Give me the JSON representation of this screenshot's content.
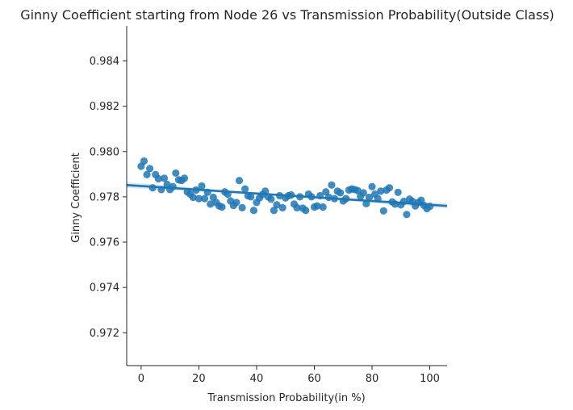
{
  "chart_data": {
    "type": "scatter",
    "title": "Ginny Coefficient starting from Node 26 vs Transmission Probability(Outside Class)",
    "xlabel": "Transmission Probability(in %)",
    "ylabel": "Ginny Coefficient",
    "xlim": [
      -5,
      106
    ],
    "ylim": [
      0.97055,
      0.98555
    ],
    "xticks": [
      0,
      20,
      40,
      60,
      80,
      100
    ],
    "yticks": [
      0.972,
      0.974,
      0.976,
      0.978,
      0.98,
      0.982,
      0.984
    ],
    "ytick_labels": [
      "0.972",
      "0.974",
      "0.976",
      "0.978",
      "0.980",
      "0.982",
      "0.984"
    ],
    "grid": false,
    "colors": {
      "points": "#1f77b4",
      "regression": "#1f77b4",
      "ci_band": "#1f77b4"
    },
    "regression": {
      "x": [
        -5,
        106
      ],
      "y": [
        0.97852,
        0.9776
      ]
    },
    "x": [
      0,
      1,
      2,
      3,
      4,
      5,
      6,
      7,
      8,
      9,
      10,
      11,
      12,
      13,
      14,
      15,
      16,
      17,
      18,
      19,
      20,
      21,
      22,
      23,
      24,
      25,
      26,
      27,
      28,
      29,
      30,
      31,
      32,
      33,
      34,
      35,
      36,
      37,
      38,
      39,
      40,
      41,
      42,
      43,
      44,
      45,
      46,
      47,
      48,
      49,
      50,
      51,
      52,
      53,
      54,
      55,
      56,
      57,
      58,
      59,
      60,
      61,
      62,
      63,
      64,
      65,
      66,
      67,
      68,
      69,
      70,
      71,
      72,
      73,
      74,
      75,
      76,
      77,
      78,
      79,
      80,
      81,
      82,
      83,
      84,
      85,
      86,
      87,
      88,
      89,
      90,
      91,
      92,
      93,
      94,
      95,
      96,
      97,
      98,
      99,
      100
    ],
    "y": [
      0.97935,
      0.97958,
      0.97898,
      0.97925,
      0.9784,
      0.97898,
      0.9788,
      0.97832,
      0.97882,
      0.97855,
      0.97832,
      0.97845,
      0.97905,
      0.97875,
      0.97872,
      0.97882,
      0.97822,
      0.97812,
      0.97798,
      0.9783,
      0.97792,
      0.97848,
      0.97792,
      0.9782,
      0.97768,
      0.97798,
      0.97775,
      0.9776,
      0.97755,
      0.97822,
      0.97812,
      0.97782,
      0.97762,
      0.97775,
      0.97872,
      0.97752,
      0.97835,
      0.97805,
      0.978,
      0.9774,
      0.97775,
      0.97795,
      0.9781,
      0.97825,
      0.978,
      0.9779,
      0.9774,
      0.97765,
      0.97805,
      0.97752,
      0.97795,
      0.97805,
      0.97808,
      0.97768,
      0.97752,
      0.978,
      0.9775,
      0.9774,
      0.97812,
      0.978,
      0.97755,
      0.9776,
      0.97805,
      0.97755,
      0.97822,
      0.97798,
      0.97852,
      0.97792,
      0.97825,
      0.97818,
      0.97782,
      0.97792,
      0.9783,
      0.97835,
      0.97832,
      0.97828,
      0.97802,
      0.97818,
      0.9777,
      0.97798,
      0.97845,
      0.97812,
      0.97792,
      0.97825,
      0.97738,
      0.9783,
      0.9784,
      0.97778,
      0.97768,
      0.9782,
      0.97765,
      0.9778,
      0.97722,
      0.9779,
      0.9778,
      0.9776,
      0.97775,
      0.97785,
      0.97762,
      0.97748,
      0.97758
    ]
  }
}
